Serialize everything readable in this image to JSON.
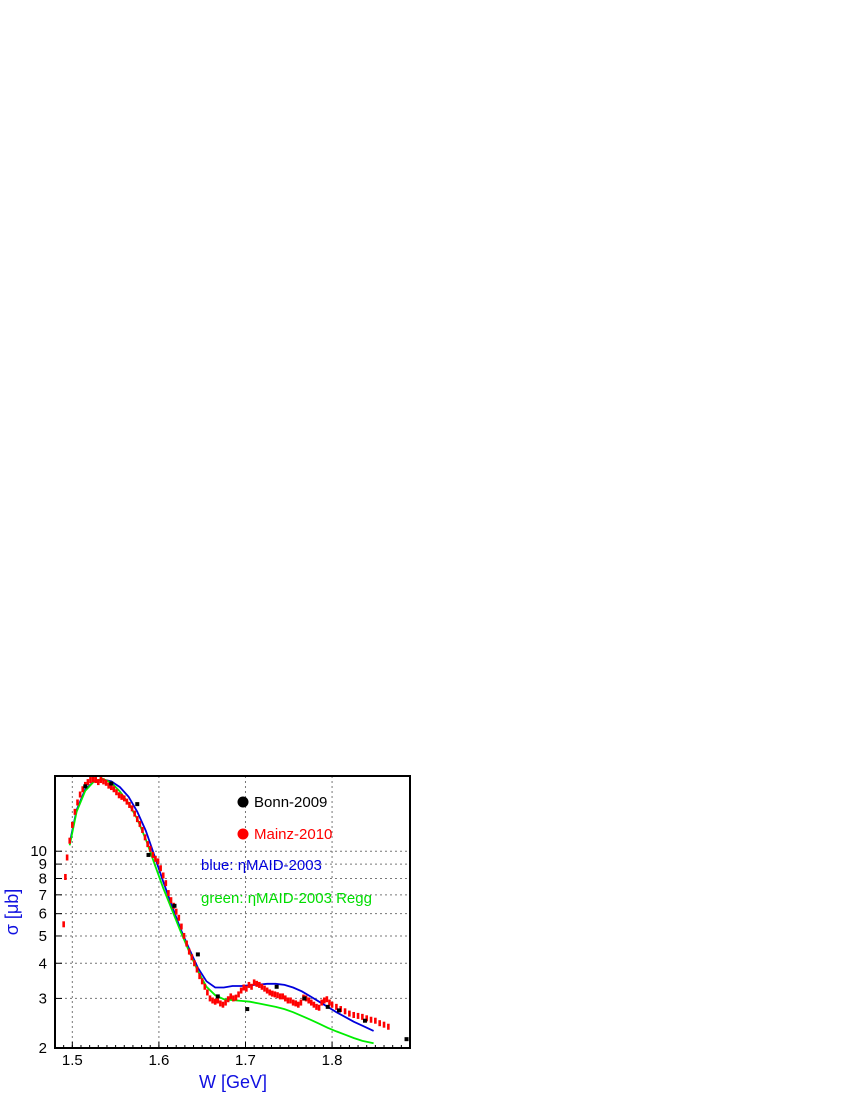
{
  "chart_data": {
    "type": "scatter",
    "xlabel": "W [GeV]",
    "ylabel": "σ [μb]",
    "xlim": [
      1.48,
      1.89
    ],
    "ylim": [
      2.0,
      18.5
    ],
    "yscale": "log",
    "grid": true,
    "x_ticks": [
      1.5,
      1.6,
      1.7,
      1.8
    ],
    "x_tick_labels": [
      "1.5",
      "1.6",
      "1.7",
      "1.8"
    ],
    "y_ticks": [
      2,
      3,
      4,
      5,
      6,
      7,
      8,
      9,
      10
    ],
    "y_tick_labels": [
      "2",
      "3",
      "4",
      "5",
      "6",
      "7",
      "8",
      "9",
      "10"
    ],
    "legend_position": "top-right",
    "colors": {
      "bonn": "#000000",
      "mainz": "#ff0000",
      "blue_curve": "#0000dd",
      "green_curve": "#00ee00",
      "axis_title": "#1010e0"
    },
    "legend": [
      {
        "label": "Bonn-2009",
        "color": "#000000",
        "marker": "dot"
      },
      {
        "label": "Mainz-2010",
        "color": "#ff0000",
        "marker": "dot"
      },
      {
        "label": "blue: ηMAID-2003",
        "color": "#0000dd",
        "marker": "none"
      },
      {
        "label": "green: ηMAID-2003 Regg",
        "color": "#00dd00",
        "marker": "none"
      }
    ],
    "series": [
      {
        "name": "blue: ηMAID-2003",
        "kind": "line",
        "color": "#0000dd",
        "x": [
          1.497,
          1.505,
          1.515,
          1.525,
          1.535,
          1.545,
          1.555,
          1.565,
          1.575,
          1.585,
          1.595,
          1.605,
          1.615,
          1.625,
          1.635,
          1.645,
          1.655,
          1.665,
          1.675,
          1.685,
          1.695,
          1.705,
          1.715,
          1.725,
          1.735,
          1.745,
          1.755,
          1.765,
          1.775,
          1.785,
          1.795,
          1.805,
          1.815,
          1.825,
          1.835,
          1.848
        ],
        "y": [
          10.7,
          14.0,
          16.6,
          17.7,
          18.0,
          17.7,
          16.9,
          15.6,
          13.8,
          11.8,
          9.6,
          7.8,
          6.4,
          5.3,
          4.5,
          3.85,
          3.45,
          3.28,
          3.28,
          3.32,
          3.32,
          3.34,
          3.36,
          3.38,
          3.38,
          3.35,
          3.28,
          3.18,
          3.05,
          2.92,
          2.8,
          2.68,
          2.58,
          2.48,
          2.4,
          2.3
        ]
      },
      {
        "name": "green: ηMAID-2003 Regg",
        "kind": "line",
        "color": "#00ee00",
        "x": [
          1.497,
          1.505,
          1.515,
          1.525,
          1.535,
          1.545,
          1.555,
          1.565,
          1.575,
          1.585,
          1.595,
          1.605,
          1.615,
          1.625,
          1.635,
          1.645,
          1.655,
          1.665,
          1.675,
          1.685,
          1.695,
          1.705,
          1.715,
          1.725,
          1.735,
          1.745,
          1.755,
          1.765,
          1.775,
          1.785,
          1.795,
          1.805,
          1.815,
          1.825,
          1.835,
          1.848
        ],
        "y": [
          10.5,
          13.8,
          16.4,
          17.7,
          18.1,
          17.5,
          16.3,
          14.8,
          13.0,
          11.0,
          9.0,
          7.4,
          6.2,
          5.2,
          4.4,
          3.75,
          3.3,
          3.08,
          2.98,
          2.96,
          2.94,
          2.92,
          2.88,
          2.84,
          2.8,
          2.75,
          2.68,
          2.6,
          2.52,
          2.44,
          2.36,
          2.29,
          2.23,
          2.17,
          2.12,
          2.08
        ]
      },
      {
        "name": "Mainz-2010",
        "kind": "points",
        "color": "#ff0000",
        "x": [
          1.49,
          1.492,
          1.494,
          1.497,
          1.5,
          1.503,
          1.506,
          1.509,
          1.512,
          1.515,
          1.518,
          1.521,
          1.524,
          1.527,
          1.53,
          1.533,
          1.536,
          1.539,
          1.542,
          1.545,
          1.548,
          1.551,
          1.554,
          1.557,
          1.56,
          1.563,
          1.566,
          1.569,
          1.572,
          1.575,
          1.578,
          1.581,
          1.584,
          1.587,
          1.59,
          1.593,
          1.596,
          1.599,
          1.602,
          1.605,
          1.608,
          1.611,
          1.614,
          1.617,
          1.62,
          1.623,
          1.626,
          1.629,
          1.632,
          1.635,
          1.638,
          1.641,
          1.644,
          1.647,
          1.65,
          1.653,
          1.656,
          1.659,
          1.662,
          1.665,
          1.668,
          1.671,
          1.674,
          1.677,
          1.68,
          1.683,
          1.686,
          1.689,
          1.692,
          1.695,
          1.698,
          1.701,
          1.704,
          1.707,
          1.71,
          1.713,
          1.716,
          1.719,
          1.722,
          1.725,
          1.728,
          1.731,
          1.734,
          1.737,
          1.74,
          1.743,
          1.746,
          1.749,
          1.752,
          1.755,
          1.758,
          1.761,
          1.764,
          1.767,
          1.77,
          1.773,
          1.776,
          1.779,
          1.782,
          1.785,
          1.788,
          1.791,
          1.794,
          1.797,
          1.8,
          1.805,
          1.81,
          1.815,
          1.82,
          1.825,
          1.83,
          1.835,
          1.84,
          1.845,
          1.85,
          1.855,
          1.86,
          1.865
        ],
        "y": [
          5.5,
          8.1,
          9.5,
          10.9,
          12.4,
          13.8,
          14.9,
          15.9,
          16.6,
          17.2,
          17.6,
          17.9,
          18.0,
          17.9,
          17.6,
          17.9,
          17.7,
          17.5,
          17.1,
          16.9,
          16.6,
          16.2,
          15.8,
          15.6,
          15.4,
          15.0,
          14.6,
          14.2,
          13.6,
          13.0,
          12.5,
          11.9,
          11.2,
          10.6,
          10.2,
          9.7,
          9.4,
          9.2,
          8.7,
          8.2,
          7.7,
          7.1,
          6.7,
          6.4,
          6.1,
          5.8,
          5.4,
          5.0,
          4.7,
          4.4,
          4.2,
          4.0,
          3.8,
          3.6,
          3.45,
          3.3,
          3.15,
          3.0,
          2.95,
          2.92,
          2.95,
          2.88,
          2.85,
          2.9,
          2.98,
          3.05,
          3.0,
          3.02,
          3.1,
          3.2,
          3.28,
          3.25,
          3.35,
          3.3,
          3.42,
          3.38,
          3.35,
          3.3,
          3.25,
          3.2,
          3.15,
          3.12,
          3.1,
          3.08,
          3.05,
          3.05,
          3.0,
          2.95,
          2.95,
          2.9,
          2.88,
          2.85,
          2.9,
          3.02,
          3.0,
          2.95,
          2.9,
          2.85,
          2.8,
          2.78,
          2.9,
          2.95,
          2.98,
          2.9,
          2.85,
          2.8,
          2.75,
          2.7,
          2.65,
          2.62,
          2.6,
          2.58,
          2.55,
          2.52,
          2.5,
          2.45,
          2.42,
          2.38
        ]
      },
      {
        "name": "Bonn-2009",
        "kind": "points",
        "color": "#000000",
        "x": [
          1.515,
          1.545,
          1.575,
          1.588,
          1.618,
          1.645,
          1.668,
          1.702,
          1.736,
          1.768,
          1.795,
          1.808,
          1.838,
          1.886
        ],
        "y": [
          17.0,
          17.4,
          14.7,
          9.7,
          6.4,
          4.3,
          3.05,
          2.75,
          3.3,
          3.0,
          2.8,
          2.72,
          2.5,
          2.15
        ]
      }
    ]
  }
}
